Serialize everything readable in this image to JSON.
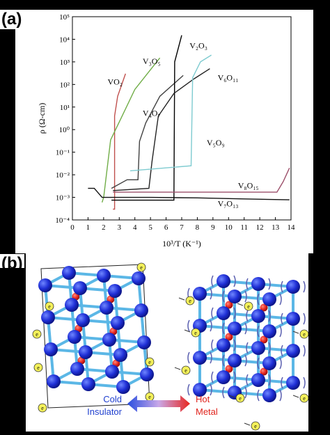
{
  "panels": {
    "a": "(a)",
    "b": "(b)"
  },
  "chart_data": {
    "type": "line",
    "xlabel": "10³/T (K⁻¹)",
    "ylabel": "ρ (Ω-cm)",
    "xlim": [
      0,
      14
    ],
    "ylim_log10": [
      -4,
      5
    ],
    "yscale": "log",
    "x_ticks": [
      "0",
      "1",
      "2",
      "3",
      "4",
      "5",
      "6",
      "7",
      "8",
      "9",
      "10",
      "11",
      "12",
      "13",
      "14"
    ],
    "y_ticks": [
      "10⁻⁴",
      "10⁻³",
      "10⁻²",
      "10⁻¹",
      "10⁰",
      "10¹",
      "10²",
      "10³",
      "10⁴",
      "10⁵"
    ],
    "grid": false,
    "series": [
      {
        "name": "VO₂",
        "color": "#c0504d",
        "points": [
          [
            2.6,
            0.0003
          ],
          [
            2.7,
            0.0003
          ],
          [
            2.7,
            4.0
          ],
          [
            2.9,
            30
          ],
          [
            3.4,
            300
          ]
        ]
      },
      {
        "name": "V₃O₅",
        "color": "#70ad47",
        "points": [
          [
            1.9,
            0.0006
          ],
          [
            2.0,
            0.001
          ],
          [
            2.45,
            0.35
          ],
          [
            3.1,
            3
          ],
          [
            4.0,
            60
          ],
          [
            5.6,
            1500
          ]
        ]
      },
      {
        "name": "V₄O₇",
        "color": "#404040",
        "points": [
          [
            2.5,
            0.0025
          ],
          [
            3.5,
            0.006
          ],
          [
            4.2,
            0.006
          ],
          [
            4.3,
            0.3
          ],
          [
            4.7,
            2
          ],
          [
            5.6,
            30
          ],
          [
            7.1,
            250
          ]
        ]
      },
      {
        "name": "V₂O₃",
        "color": "#000000",
        "points": [
          [
            2.5,
            0.00075
          ],
          [
            6.5,
            0.00075
          ],
          [
            6.55,
            1000
          ],
          [
            7.0,
            15000
          ]
        ]
      },
      {
        "name": "V₆O₁₁",
        "color": "#222222",
        "points": [
          [
            2.6,
            0.002
          ],
          [
            4.9,
            0.0025
          ],
          [
            5.1,
            0.04
          ],
          [
            5.5,
            4
          ],
          [
            6.5,
            40
          ],
          [
            7.8,
            180
          ],
          [
            8.8,
            500
          ]
        ]
      },
      {
        "name": "V₅O₉",
        "color": "#7ecbd0",
        "points": [
          [
            3.7,
            0.015
          ],
          [
            7.6,
            0.025
          ],
          [
            7.7,
            200
          ],
          [
            8.2,
            1000
          ],
          [
            8.9,
            2000
          ]
        ]
      },
      {
        "name": "V₈O₁₅",
        "color": "#9c4f6a",
        "points": [
          [
            2.6,
            0.0017
          ],
          [
            13.1,
            0.0017
          ],
          [
            13.5,
            0.005
          ],
          [
            13.9,
            0.02
          ]
        ]
      },
      {
        "name": "V₇O₁₃",
        "color": "#111111",
        "points": [
          [
            1.0,
            0.0025
          ],
          [
            1.4,
            0.0025
          ],
          [
            1.9,
            0.001
          ],
          [
            5.0,
            0.001
          ],
          [
            8.0,
            0.00095
          ],
          [
            11.0,
            0.00085
          ],
          [
            13.9,
            0.00078
          ]
        ]
      }
    ],
    "series_labels": [
      {
        "text": "VO₂",
        "x": 2.25,
        "y": 100
      },
      {
        "text": "V₃O₅",
        "x": 4.5,
        "y": 800
      },
      {
        "text": "V₄O₇",
        "x": 4.5,
        "y": 4
      },
      {
        "text": "V₂O₃",
        "x": 7.5,
        "y": 4000
      },
      {
        "text": "V₆O₁₁",
        "x": 9.3,
        "y": 150
      },
      {
        "text": "V₅O₉",
        "x": 8.6,
        "y": 0.2
      },
      {
        "text": "V₈O₁₅",
        "x": 10.6,
        "y": 0.0025
      },
      {
        "text": "V₇O₁₃",
        "x": 9.3,
        "y": 0.0004
      }
    ]
  },
  "figure_b": {
    "left_caption_top": "Cold",
    "left_caption_bottom": "Insulator",
    "right_caption_top": "Hot",
    "right_caption_bottom": "Metal",
    "electron_symbol": "e",
    "colors": {
      "vanadium": "#1f2fd6",
      "oxygen": "#e8261f",
      "bond": "#5bb7e6",
      "electron": "#f3f05a",
      "cold": "#1f3fcf",
      "hot": "#e0231c"
    }
  }
}
